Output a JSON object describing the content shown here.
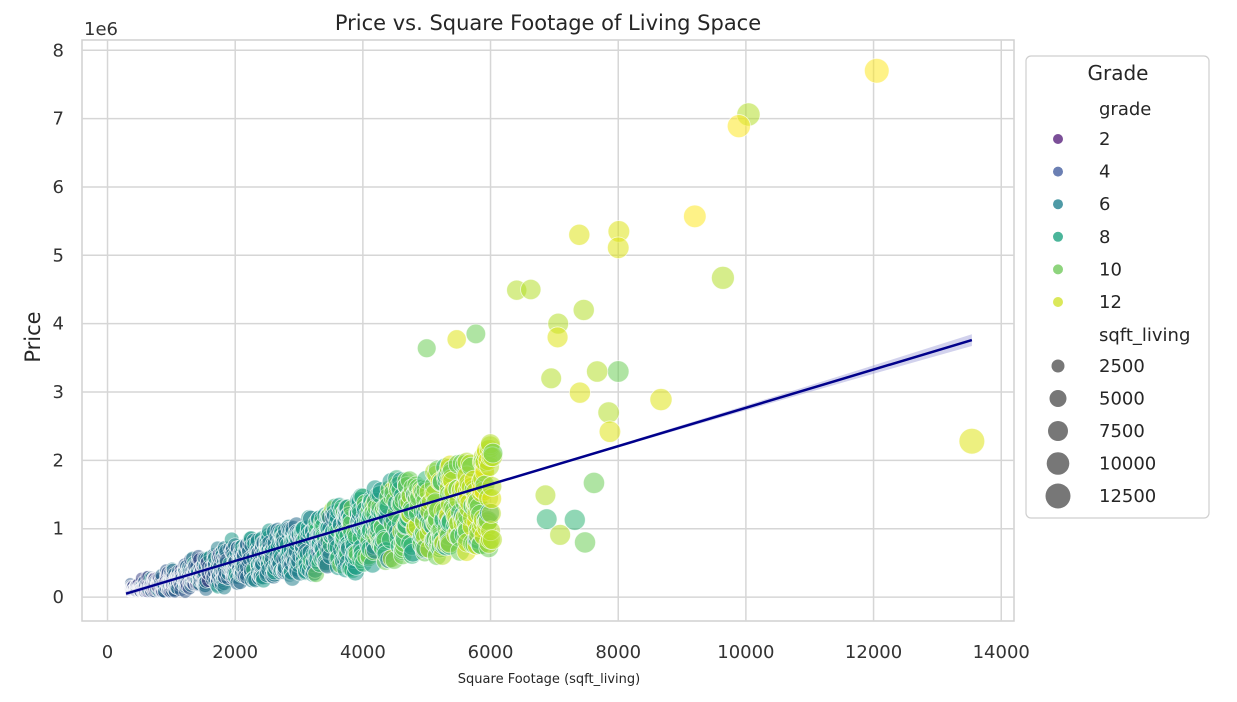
{
  "chart_data": {
    "type": "scatter",
    "title": "Price vs. Square Footage of Living Space",
    "xlabel": "Square Footage (sqft_living)",
    "ylabel": "Price",
    "y_offset_text": "1e6",
    "xlim": [
      -400,
      14200
    ],
    "ylim": [
      -350000,
      8150000
    ],
    "x_ticks": [
      0,
      2000,
      4000,
      6000,
      8000,
      10000,
      12000,
      14000
    ],
    "x_tick_labels": [
      "0",
      "2000",
      "4000",
      "6000",
      "8000",
      "10000",
      "12000",
      "14000"
    ],
    "y_ticks": [
      0,
      1000000,
      2000000,
      3000000,
      4000000,
      5000000,
      6000000,
      7000000,
      8000000
    ],
    "y_tick_labels": [
      "0",
      "1",
      "2",
      "3",
      "4",
      "5",
      "6",
      "7",
      "8"
    ],
    "grid": true,
    "legend": {
      "placement": "outside-right",
      "title": "Grade",
      "hue_title": "grade",
      "hue_items": [
        {
          "label": "2",
          "color": "#7b4f98"
        },
        {
          "label": "4",
          "color": "#6b7fb3"
        },
        {
          "label": "6",
          "color": "#4e9aa6"
        },
        {
          "label": "8",
          "color": "#4bb59a"
        },
        {
          "label": "10",
          "color": "#8ed47d"
        },
        {
          "label": "12",
          "color": "#dbe85a"
        }
      ],
      "size_title": "sqft_living",
      "size_items": [
        {
          "label": "2500",
          "value": 2500
        },
        {
          "label": "5000",
          "value": 5000
        },
        {
          "label": "7500",
          "value": 7500
        },
        {
          "label": "10000",
          "value": 10000
        },
        {
          "label": "12500",
          "value": 12500
        }
      ]
    },
    "grade_colors": {
      "2": "#440154",
      "3": "#46317e",
      "4": "#3f4788",
      "5": "#365c8d",
      "6": "#2e6f8e",
      "7": "#26828e",
      "8": "#1f9a8a",
      "9": "#35b779",
      "10": "#6ece58",
      "11": "#b5de2b",
      "12": "#dfe318",
      "13": "#fde725"
    },
    "regression_line": {
      "x": [
        290,
        13540
      ],
      "y": [
        50000,
        3760000
      ],
      "color": "#00008b",
      "ci_color": "#9b9bd8"
    },
    "outlier_points": [
      {
        "x": 12050,
        "y": 7700000,
        "grade": 13
      },
      {
        "x": 10040,
        "y": 7060000,
        "grade": 11
      },
      {
        "x": 9890,
        "y": 6890000,
        "grade": 13
      },
      {
        "x": 9200,
        "y": 5570000,
        "grade": 13
      },
      {
        "x": 9640,
        "y": 4670000,
        "grade": 11
      },
      {
        "x": 8010,
        "y": 5350000,
        "grade": 12
      },
      {
        "x": 8000,
        "y": 5110000,
        "grade": 12
      },
      {
        "x": 7390,
        "y": 5300000,
        "grade": 12
      },
      {
        "x": 13540,
        "y": 2280000,
        "grade": 12
      },
      {
        "x": 8670,
        "y": 2890000,
        "grade": 12
      },
      {
        "x": 8000,
        "y": 3300000,
        "grade": 10
      },
      {
        "x": 7850,
        "y": 2700000,
        "grade": 11
      },
      {
        "x": 7670,
        "y": 3300000,
        "grade": 11
      },
      {
        "x": 7460,
        "y": 4200000,
        "grade": 11
      },
      {
        "x": 6410,
        "y": 4490000,
        "grade": 11
      },
      {
        "x": 6630,
        "y": 4500000,
        "grade": 11
      },
      {
        "x": 7060,
        "y": 4000000,
        "grade": 11
      },
      {
        "x": 7050,
        "y": 3800000,
        "grade": 12
      },
      {
        "x": 7400,
        "y": 2990000,
        "grade": 12
      },
      {
        "x": 7870,
        "y": 2420000,
        "grade": 12
      },
      {
        "x": 7620,
        "y": 1670000,
        "grade": 10
      },
      {
        "x": 7480,
        "y": 800000,
        "grade": 10
      },
      {
        "x": 7320,
        "y": 1130000,
        "grade": 9
      },
      {
        "x": 7090,
        "y": 910000,
        "grade": 11
      },
      {
        "x": 6860,
        "y": 1490000,
        "grade": 11
      },
      {
        "x": 6880,
        "y": 1140000,
        "grade": 9
      },
      {
        "x": 5770,
        "y": 3850000,
        "grade": 10
      },
      {
        "x": 5470,
        "y": 3770000,
        "grade": 12
      },
      {
        "x": 5000,
        "y": 3640000,
        "grade": 10
      },
      {
        "x": 6950,
        "y": 3200000,
        "grade": 11
      }
    ]
  }
}
